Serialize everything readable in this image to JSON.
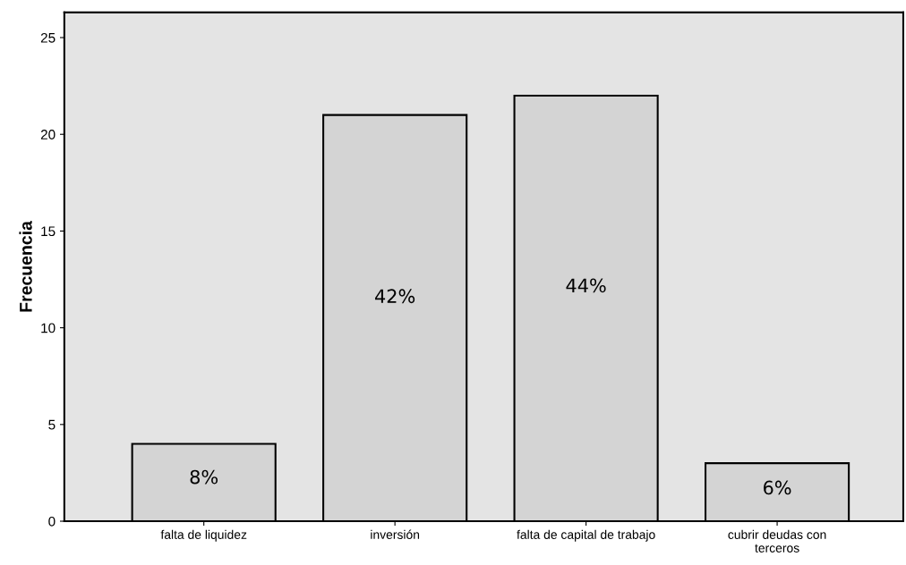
{
  "chart_data": {
    "type": "bar",
    "ylabel": "Frecuencia",
    "categories": [
      "falta de liquidez",
      "inversión",
      "falta de capital de trabajo",
      "cubrir deudas con\nterceros"
    ],
    "values": [
      4,
      21,
      22,
      3
    ],
    "annotations": [
      "8%",
      "42%",
      "44%",
      "6%"
    ],
    "color": "#d4d4d4",
    "ylim": [
      0,
      26.3
    ],
    "yticks": [
      0,
      5,
      10,
      15,
      20,
      25
    ],
    "grid": false
  }
}
